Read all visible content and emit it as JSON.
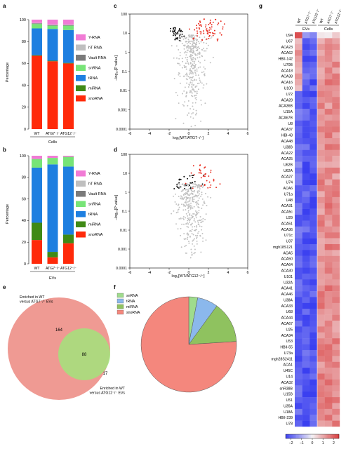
{
  "panels": {
    "a": {
      "letter": "a",
      "ylabel": "Percentage",
      "group": "Cells"
    },
    "b": {
      "letter": "b",
      "ylabel": "Percentage",
      "group": "EVs"
    },
    "c": {
      "letter": "c",
      "xlabel": "log₂[WT/ATG7⁻/⁻]",
      "ylabel": "−log₁₀[P value]"
    },
    "d": {
      "letter": "d",
      "xlabel": "log₂[WT/ATG12⁻/⁻]",
      "ylabel": "−log₁₀[P value]"
    },
    "e": {
      "letter": "e"
    },
    "f": {
      "letter": "f"
    },
    "g": {
      "letter": "g"
    }
  },
  "legend_ab": [
    "Y-RNA",
    "hT RNA",
    "Vault RNA",
    "snRNA",
    "tRNA",
    "miRNA",
    "snoRNA"
  ],
  "colors": {
    "Y-RNA": "#f17bd5",
    "hT RNA": "#bfbfbf",
    "Vault RNA": "#7a7a7a",
    "snRNA": "#77e477",
    "tRNA": "#1e7fe0",
    "miRNA": "#3f8a16",
    "snoRNA": "#ff2a0a",
    "scatter_gray": "#c0c0c0",
    "scatter_black": "#111111",
    "scatter_red": "#e8291c",
    "venn_red": "#ef9a93",
    "venn_green": "#9ee77a",
    "pie_snRNA": "#9fdc8c",
    "pie_tRNA": "#8bb8ec",
    "pie_miRNA": "#8fc25f",
    "pie_snoRNA": "#f4877d",
    "heat_low": "#3a3ff0",
    "heat_mid": "#f4f1f4",
    "heat_high": "#d8393a"
  },
  "chart_data": [
    {
      "id": "a",
      "type": "bar",
      "stacked": true,
      "categories": [
        "WT",
        "ATG7⁻/⁻",
        "ATG12⁻/⁻"
      ],
      "category_group": "Cells",
      "ylabel": "Percentage",
      "ylim": [
        0,
        100
      ],
      "yticks": [
        0,
        20,
        40,
        60,
        80,
        100
      ],
      "series": [
        {
          "name": "snoRNA",
          "values": [
            67,
            62,
            60
          ]
        },
        {
          "name": "miRNA",
          "values": [
            0.5,
            0.5,
            0.5
          ]
        },
        {
          "name": "tRNA",
          "values": [
            24.5,
            29,
            30
          ]
        },
        {
          "name": "snRNA",
          "values": [
            4,
            3,
            4
          ]
        },
        {
          "name": "Vault RNA",
          "values": [
            0.5,
            0.5,
            0.5
          ]
        },
        {
          "name": "hT RNA",
          "values": [
            0.5,
            0.5,
            0.5
          ]
        },
        {
          "name": "Y-RNA",
          "values": [
            3,
            4.5,
            4.5
          ]
        }
      ]
    },
    {
      "id": "b",
      "type": "bar",
      "stacked": true,
      "categories": [
        "WT",
        "ATG7⁻/⁻",
        "ATG12⁻/⁻"
      ],
      "category_group": "EVs",
      "ylabel": "Percentage",
      "ylim": [
        0,
        100
      ],
      "yticks": [
        0,
        20,
        40,
        60,
        80,
        100
      ],
      "series": [
        {
          "name": "snoRNA",
          "values": [
            22,
            6,
            19
          ]
        },
        {
          "name": "miRNA",
          "values": [
            16,
            5,
            8
          ]
        },
        {
          "name": "tRNA",
          "values": [
            51,
            81,
            63
          ]
        },
        {
          "name": "snRNA",
          "values": [
            8,
            6,
            9
          ]
        },
        {
          "name": "Vault RNA",
          "values": [
            0,
            0,
            0
          ]
        },
        {
          "name": "hT RNA",
          "values": [
            0,
            0,
            0
          ]
        },
        {
          "name": "Y-RNA",
          "values": [
            3,
            2,
            1
          ]
        }
      ]
    },
    {
      "id": "c",
      "type": "scatter",
      "xlabel": "log₂[WT/ATG7⁻/⁻]",
      "ylabel": "−log₁₀[P value]",
      "xlim": [
        -6,
        6
      ],
      "xticks": [
        -6,
        -4,
        -2,
        0,
        2,
        4,
        6
      ],
      "yscale": "log",
      "ylim": [
        0.0001,
        100
      ],
      "yticks": [
        {
          "v": 100,
          "label": "100"
        },
        {
          "v": 10,
          "label": "10"
        },
        {
          "v": 1,
          "label": "1"
        },
        {
          "v": 0.1,
          "label": "0.1"
        },
        {
          "v": 0.01,
          "label": "0.01"
        },
        {
          "v": 0.001,
          "label": "0.001"
        },
        {
          "v": 0.0001,
          "label": "0.0001"
        }
      ],
      "clusters": [
        {
          "color": "gray",
          "count": 360,
          "xmean": 0.4,
          "xsd": 0.75,
          "ymin": 0.0001,
          "ymax": 8
        },
        {
          "color": "black",
          "count": 45,
          "xmean": -1.2,
          "xsd": 0.35,
          "ymin": 4,
          "ymax": 22
        },
        {
          "color": "red",
          "count": 70,
          "xmean": 2.0,
          "xsd": 0.8,
          "ymin": 4,
          "ymax": 55
        }
      ]
    },
    {
      "id": "d",
      "type": "scatter",
      "xlabel": "log₂[WT/ATG12⁻/⁻]",
      "ylabel": "−log₁₀[P value]",
      "xlim": [
        -6,
        6
      ],
      "xticks": [
        -6,
        -4,
        -2,
        0,
        2,
        4,
        6
      ],
      "yscale": "log",
      "ylim": [
        0.0001,
        100
      ],
      "yticks": [
        {
          "v": 100,
          "label": "100"
        },
        {
          "v": 10,
          "label": "10"
        },
        {
          "v": 1,
          "label": "1"
        },
        {
          "v": 0.1,
          "label": "0.1"
        },
        {
          "v": 0.01,
          "label": "0.01"
        },
        {
          "v": 0.001,
          "label": "0.001"
        },
        {
          "v": 0.0001,
          "label": "0.0001"
        }
      ],
      "clusters": [
        {
          "color": "gray",
          "count": 330,
          "xmean": 0.3,
          "xsd": 0.75,
          "ymin": 0.0001,
          "ymax": 3
        },
        {
          "color": "black",
          "count": 30,
          "xmean": -0.3,
          "xsd": 0.9,
          "ymin": 1.5,
          "ymax": 8
        },
        {
          "color": "red",
          "count": 35,
          "xmean": 1.4,
          "xsd": 0.8,
          "ymin": 1.5,
          "ymax": 30
        }
      ]
    },
    {
      "id": "e",
      "type": "venn",
      "sets": [
        {
          "label": "Enriched in WT versus ATG7⁻/⁻ EVs",
          "only": 164
        },
        {
          "label": "Enriched in WT versus ATG12⁻/⁻ EVs",
          "only": 17
        }
      ],
      "intersection": 88
    },
    {
      "id": "f",
      "type": "pie",
      "labels": [
        "snRNA",
        "tRNA",
        "miRNA",
        "snoRNA"
      ],
      "values": [
        3,
        7,
        14,
        76
      ]
    },
    {
      "id": "g",
      "type": "heatmap",
      "columns": [
        "WT",
        "ATG7⁻/⁻",
        "ATG12⁻/⁻",
        "WT",
        "ATG7⁻/⁻",
        "ATG12⁻/⁻"
      ],
      "column_groups": [
        {
          "label": "EVs",
          "span": 3
        },
        {
          "label": "Cells",
          "span": 3
        }
      ],
      "rows": [
        "U94",
        "U67",
        "ACA23",
        "ACA62",
        "HBII-142",
        "U70B",
        "ACA18",
        "ACA38",
        "ACA16",
        "U100",
        "U72",
        "ACA28",
        "ACA36B",
        "U15A",
        "ACA67B",
        "U8",
        "ACA37",
        "HBI-43",
        "ACA48",
        "U38B",
        "ACA22",
        "ACA25",
        "U62B",
        "U62A",
        "ACA27",
        "U74",
        "ACA6",
        "U71a",
        "U48",
        "ACA31",
        "ACA5c",
        "U29",
        "ACA51",
        "ACA36",
        "U71c",
        "U37",
        "mgh18S121",
        "ACA5",
        "ACA50",
        "ACA64",
        "ACA30",
        "U101",
        "U32A",
        "ACA41",
        "ACA46",
        "U38A",
        "ACA33",
        "U68",
        "ACA44",
        "ACA67",
        "U25",
        "ACA34",
        "U53",
        "HBII-55",
        "U73a",
        "mgh28S2411",
        "ACA1",
        "U45C",
        "U14",
        "ACA32",
        "snR38B",
        "U15B",
        "U51",
        "U35A",
        "U18A",
        "HBII-239",
        "U78"
      ],
      "colorbar_ticks": [
        {
          "v": -2,
          "label": "−2"
        },
        {
          "v": -1,
          "label": "−1"
        },
        {
          "v": 0,
          "label": "0"
        },
        {
          "v": 1,
          "label": "1"
        },
        {
          "v": 2,
          "label": "2"
        }
      ],
      "zlim": [
        -2.5,
        2.5
      ]
    }
  ]
}
